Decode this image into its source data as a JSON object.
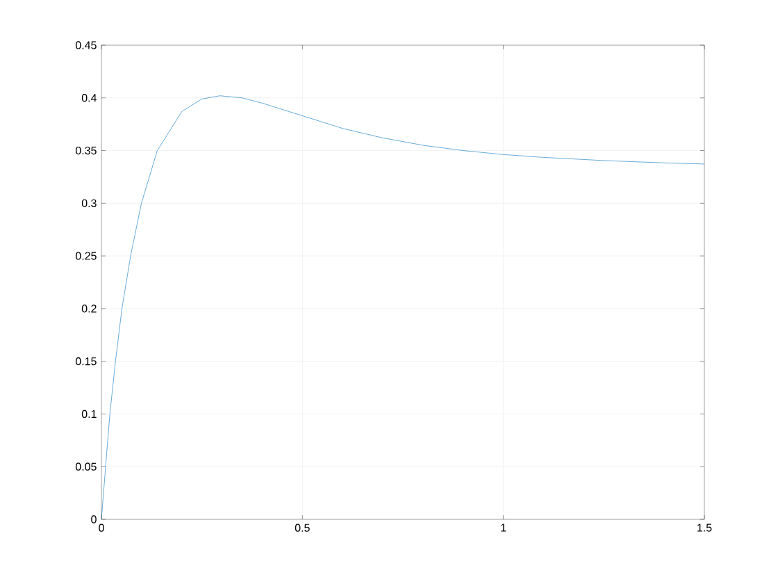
{
  "chart_data": {
    "type": "line",
    "x": [
      0,
      0.0104,
      0.021,
      0.035,
      0.051,
      0.0726,
      0.0995,
      0.139,
      0.2,
      0.25,
      0.295,
      0.35,
      0.4,
      0.5,
      0.6,
      0.7,
      0.8,
      0.9,
      1,
      1.1,
      1.25,
      1.4,
      1.5
    ],
    "series": [
      {
        "color": "#0072bd",
        "values": [
          0,
          0.05,
          0.1,
          0.15,
          0.2,
          0.25,
          0.3,
          0.35,
          0.387,
          0.399,
          0.402,
          0.4,
          0.395,
          0.383,
          0.371,
          0.362,
          0.355,
          0.35,
          0.3462,
          0.3435,
          0.3405,
          0.3383,
          0.3372
        ]
      }
    ],
    "xlim": [
      0,
      1.5
    ],
    "ylim": [
      0,
      0.45
    ],
    "xticks": [
      0,
      0.5,
      1,
      1.5
    ],
    "yticks": [
      0,
      0.05,
      0.1,
      0.15,
      0.2,
      0.25,
      0.3,
      0.35,
      0.4,
      0.45
    ],
    "grid": true,
    "marker": "none",
    "line_style": "solid"
  }
}
